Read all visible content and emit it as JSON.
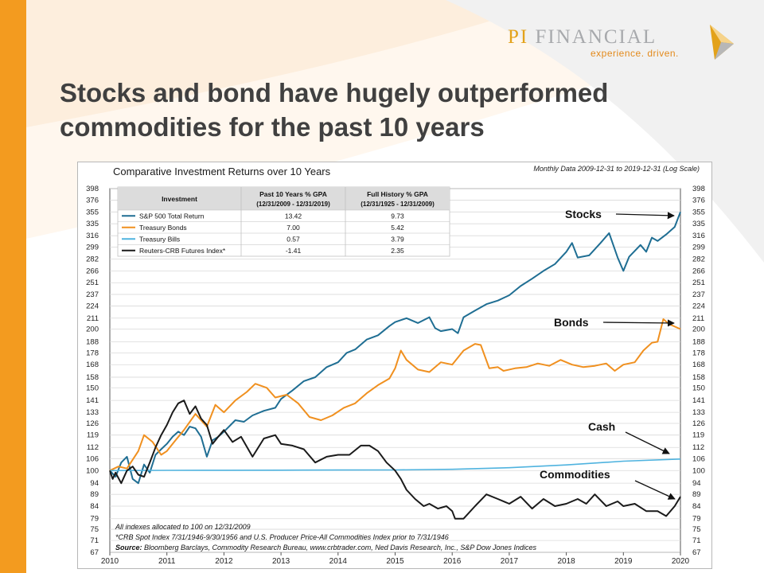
{
  "slide": {
    "title": "Stocks and bond have hugely outperformed commodities for the past 10 years"
  },
  "logo": {
    "brand_prefix": "PI",
    "brand_suffix": "FINANCIAL",
    "tagline": "experience. driven."
  },
  "colors": {
    "accent_bar": "#f39b1f",
    "stocks": "#1f6e93",
    "bonds": "#f0901f",
    "bills": "#4fb3df",
    "commodities": "#1a1a1a"
  },
  "chart_data": {
    "type": "line",
    "title": "Comparative Investment Returns over 10 Years",
    "subtitle": "Monthly Data 2009-12-31 to 2019-12-31 (Log Scale)",
    "y_scale": "log",
    "ylim": [
      67,
      398
    ],
    "xlim": [
      2010,
      2020
    ],
    "y_ticks": [
      398,
      376,
      355,
      335,
      316,
      299,
      282,
      266,
      251,
      237,
      224,
      211,
      200,
      188,
      178,
      168,
      158,
      150,
      141,
      133,
      126,
      119,
      112,
      106,
      100,
      94,
      89,
      84,
      79,
      75,
      71,
      67
    ],
    "x_ticks": [
      "2010",
      "2011",
      "2012",
      "2013",
      "2014",
      "2015",
      "2016",
      "2017",
      "2018",
      "2019",
      "2020"
    ],
    "grid": true,
    "table": {
      "headers": [
        "Investment",
        "Past 10 Years % GPA",
        "Full History % GPA"
      ],
      "subheaders": [
        "",
        "(12/31/2009 - 12/31/2019)",
        "(12/31/1925 - 12/31/2009)"
      ],
      "rows": [
        {
          "name": "S&P 500 Total Return",
          "past10": "13.42",
          "full": "9.73"
        },
        {
          "name": "Treasury Bonds",
          "past10": "7.00",
          "full": "5.42"
        },
        {
          "name": "Treasury Bills",
          "past10": "0.57",
          "full": "3.79"
        },
        {
          "name": "Reuters-CRB Futures Index*",
          "past10": "-1.41",
          "full": "2.35"
        }
      ]
    },
    "annotations": [
      "Stocks",
      "Bonds",
      "Cash",
      "Commodities"
    ],
    "footnotes": [
      "All indexes allocated to 100 on 12/31/2009",
      "*CRB Spot Index 7/31/1946-9/30/1956 and U.S. Producer Price-All Commodities Index prior to 7/31/1946"
    ],
    "source_label": "Source:",
    "source_text": "Bloomberg Barclays, Commodity Research Bureau, www.crbtrader.com, Ned Davis Research, Inc., S&P Dow Jones Indices",
    "series": [
      {
        "name": "S&P 500 Total Return",
        "color": "#1f6e93",
        "x": [
          2010.0,
          2010.1,
          2010.2,
          2010.3,
          2010.4,
          2010.5,
          2010.6,
          2010.7,
          2010.8,
          2010.9,
          2011.0,
          2011.1,
          2011.2,
          2011.3,
          2011.4,
          2011.5,
          2011.6,
          2011.7,
          2011.8,
          2011.9,
          2012.0,
          2012.2,
          2012.35,
          2012.5,
          2012.7,
          2012.9,
          2013.0,
          2013.2,
          2013.4,
          2013.6,
          2013.8,
          2014.0,
          2014.15,
          2014.3,
          2014.5,
          2014.7,
          2014.9,
          2015.0,
          2015.2,
          2015.4,
          2015.6,
          2015.7,
          2015.8,
          2016.0,
          2016.1,
          2016.2,
          2016.4,
          2016.6,
          2016.8,
          2017.0,
          2017.2,
          2017.4,
          2017.6,
          2017.8,
          2018.0,
          2018.1,
          2018.2,
          2018.4,
          2018.6,
          2018.75,
          2018.9,
          2019.0,
          2019.1,
          2019.3,
          2019.4,
          2019.5,
          2019.6,
          2019.75,
          2019.9,
          2020.0
        ],
        "values": [
          100,
          97,
          104,
          107,
          96,
          94,
          103,
          99,
          108,
          111,
          114,
          118,
          121,
          119,
          124,
          123,
          118,
          107,
          116,
          118,
          121,
          128,
          127,
          131,
          134,
          136,
          142,
          148,
          155,
          158,
          166,
          170,
          178,
          181,
          190,
          194,
          203,
          207,
          211,
          206,
          212,
          201,
          198,
          200,
          196,
          212,
          219,
          226,
          230,
          236,
          247,
          256,
          266,
          275,
          292,
          305,
          284,
          287,
          305,
          320,
          284,
          266,
          285,
          302,
          292,
          313,
          308,
          318,
          330,
          355
        ]
      },
      {
        "name": "Treasury Bonds",
        "color": "#f0901f",
        "x": [
          2010.0,
          2010.15,
          2010.3,
          2010.5,
          2010.6,
          2010.75,
          2010.9,
          2011.0,
          2011.15,
          2011.3,
          2011.5,
          2011.7,
          2011.85,
          2012.0,
          2012.2,
          2012.4,
          2012.55,
          2012.75,
          2012.9,
          2013.1,
          2013.3,
          2013.5,
          2013.7,
          2013.9,
          2014.1,
          2014.3,
          2014.5,
          2014.7,
          2014.9,
          2015.0,
          2015.1,
          2015.2,
          2015.4,
          2015.6,
          2015.8,
          2016.0,
          2016.2,
          2016.4,
          2016.5,
          2016.65,
          2016.8,
          2016.9,
          2017.1,
          2017.3,
          2017.5,
          2017.7,
          2017.9,
          2018.1,
          2018.3,
          2018.5,
          2018.7,
          2018.85,
          2019.0,
          2019.2,
          2019.35,
          2019.5,
          2019.6,
          2019.7,
          2019.8,
          2020.0
        ],
        "values": [
          100,
          102,
          101,
          110,
          119,
          115,
          108,
          110,
          116,
          122,
          132,
          124,
          138,
          133,
          141,
          147,
          153,
          150,
          143,
          145,
          139,
          130,
          128,
          131,
          136,
          139,
          146,
          152,
          157,
          165,
          180,
          172,
          164,
          162,
          170,
          168,
          180,
          186,
          185,
          165,
          166,
          163,
          165,
          166,
          169,
          167,
          172,
          168,
          166,
          167,
          169,
          163,
          168,
          170,
          180,
          187,
          188,
          210,
          205,
          200
        ]
      },
      {
        "name": "Treasury Bills",
        "color": "#4fb3df",
        "x": [
          2010,
          2011,
          2012,
          2013,
          2014,
          2015,
          2016,
          2017,
          2018,
          2019,
          2020
        ],
        "values": [
          100,
          100.1,
          100.15,
          100.2,
          100.25,
          100.3,
          100.6,
          101.4,
          102.8,
          104.7,
          105.8
        ]
      },
      {
        "name": "Reuters-CRB Futures Index*",
        "color": "#1a1a1a",
        "x": [
          2010.0,
          2010.05,
          2010.1,
          2010.2,
          2010.3,
          2010.4,
          2010.5,
          2010.6,
          2010.7,
          2010.8,
          2010.9,
          2011.0,
          2011.1,
          2011.2,
          2011.3,
          2011.4,
          2011.5,
          2011.6,
          2011.7,
          2011.8,
          2011.9,
          2012.0,
          2012.15,
          2012.3,
          2012.5,
          2012.7,
          2012.9,
          2013.0,
          2013.2,
          2013.4,
          2013.6,
          2013.8,
          2014.0,
          2014.2,
          2014.4,
          2014.55,
          2014.7,
          2014.85,
          2015.0,
          2015.1,
          2015.2,
          2015.35,
          2015.5,
          2015.6,
          2015.75,
          2015.9,
          2016.0,
          2016.05,
          2016.2,
          2016.4,
          2016.6,
          2016.8,
          2017.0,
          2017.2,
          2017.4,
          2017.6,
          2017.8,
          2018.0,
          2018.2,
          2018.35,
          2018.5,
          2018.7,
          2018.9,
          2019.0,
          2019.2,
          2019.4,
          2019.6,
          2019.75,
          2019.9,
          2020.0
        ],
        "values": [
          100,
          96,
          99,
          94,
          100,
          102,
          98,
          97,
          104,
          112,
          119,
          125,
          133,
          139,
          141,
          132,
          137,
          129,
          125,
          114,
          118,
          122,
          115,
          118,
          107,
          117,
          119,
          114,
          113,
          111,
          104,
          107,
          108,
          108,
          113,
          113,
          110,
          104,
          100,
          96,
          91,
          87,
          84,
          85,
          83,
          84,
          82,
          79,
          79,
          84,
          89,
          87,
          85,
          88,
          83,
          87,
          84,
          85,
          87,
          85,
          89,
          84,
          86,
          84,
          85,
          82,
          82,
          80,
          84,
          88
        ]
      }
    ]
  }
}
